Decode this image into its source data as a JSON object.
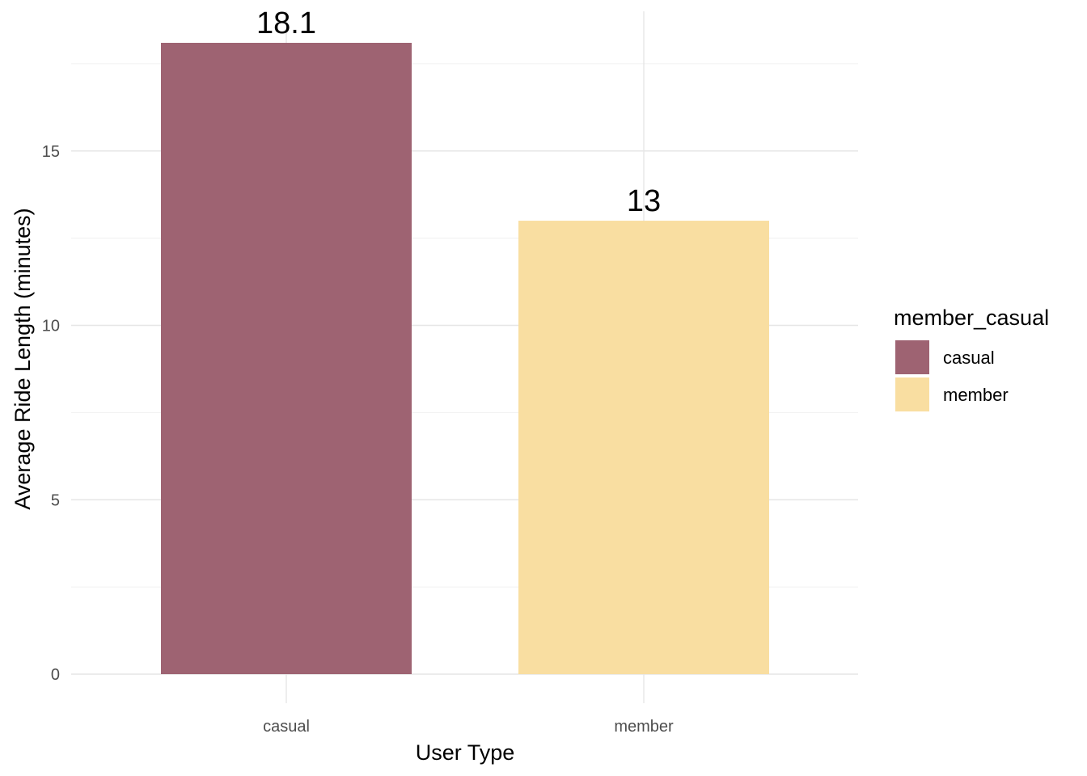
{
  "chart_data": {
    "type": "bar",
    "categories": [
      "casual",
      "member"
    ],
    "values": [
      18.1,
      13
    ],
    "data_labels": [
      "18.1",
      "13"
    ],
    "colors": [
      "#9e6372",
      "#f9dea1"
    ],
    "xlabel": "User Type",
    "ylabel": "Average Ride Length (minutes)",
    "ylim": [
      0,
      18.1
    ],
    "y_ticks": [
      0,
      5,
      10,
      15
    ],
    "y_tick_labels": [
      "0",
      "5",
      "10",
      "15"
    ],
    "grid": true,
    "legend": {
      "title": "member_casual",
      "placement": "right",
      "entries": [
        "casual",
        "member"
      ]
    }
  }
}
